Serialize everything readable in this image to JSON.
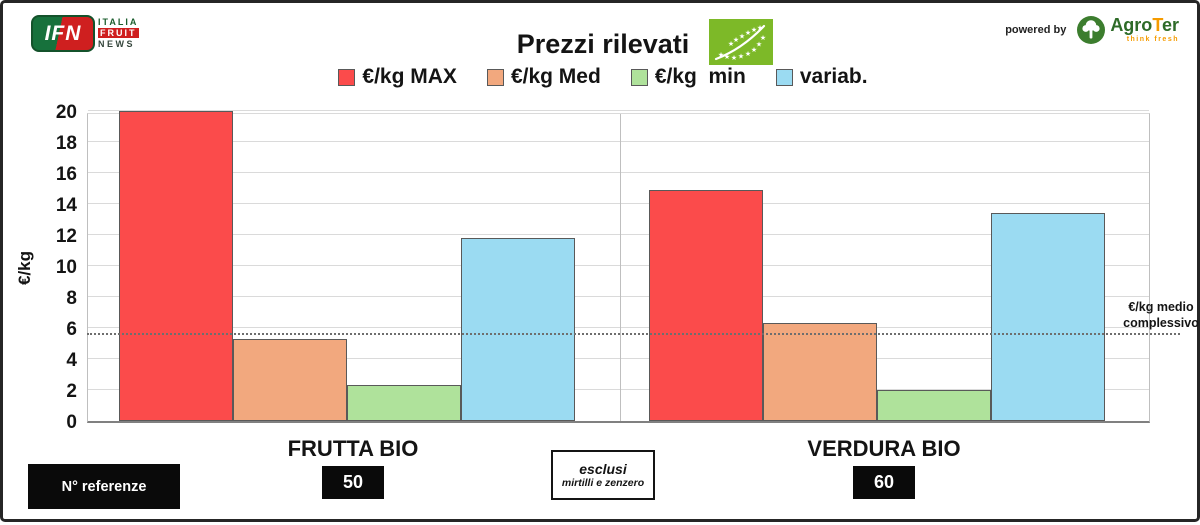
{
  "header": {
    "ifn": {
      "badge": "IFN",
      "line1": "ITALIA",
      "line2": "FRUIT",
      "line3": "NEWS"
    },
    "title": "Prezzi rilevati",
    "powered_by": "powered by",
    "agroter": {
      "part1": "Agro",
      "part2": "T",
      "part3": "er",
      "tagline": "think fresh"
    },
    "eu_logo_name": "eu-organic-leaf-logo"
  },
  "chart_data": {
    "type": "bar",
    "title": "Prezzi rilevati",
    "xlabel": "",
    "ylabel": "€/kg",
    "ylim": [
      0,
      20
    ],
    "ytick_step": 2,
    "grid": true,
    "legend_position": "top",
    "categories": [
      "FRUTTA BIO",
      "VERDURA BIO"
    ],
    "series": [
      {
        "name": "€/kg MAX",
        "color": "#FB4B4B",
        "values": [
          20.0,
          14.9
        ]
      },
      {
        "name": "€/kg Med",
        "color": "#F2A87E",
        "values": [
          5.3,
          6.3
        ]
      },
      {
        "name": "€/kg  min",
        "color": "#AFE29B",
        "values": [
          2.3,
          2.0
        ]
      },
      {
        "name": "variab.",
        "color": "#9BDBF2",
        "values": [
          11.8,
          13.4
        ]
      }
    ],
    "reference_line": {
      "value": 5.8,
      "label": "€/kg medio complessivo",
      "label_lines": [
        "€/kg medio",
        "complessivo"
      ]
    },
    "n_referenze": [
      50,
      60
    ],
    "note": "esclusi mirtilli e zenzero"
  },
  "footer": {
    "n_referenze_label": "N° referenze",
    "note_line1": "esclusi",
    "note_line2": "mirtilli e zenzero"
  },
  "colors": {
    "bar_border": "#595959",
    "grid": "#DADADA",
    "axis": "#808080",
    "separator": "#BFBFBF",
    "reference_line": "#6E6E6E",
    "eu_green": "#7DB928",
    "badge_bg": "#0A0A0A"
  }
}
